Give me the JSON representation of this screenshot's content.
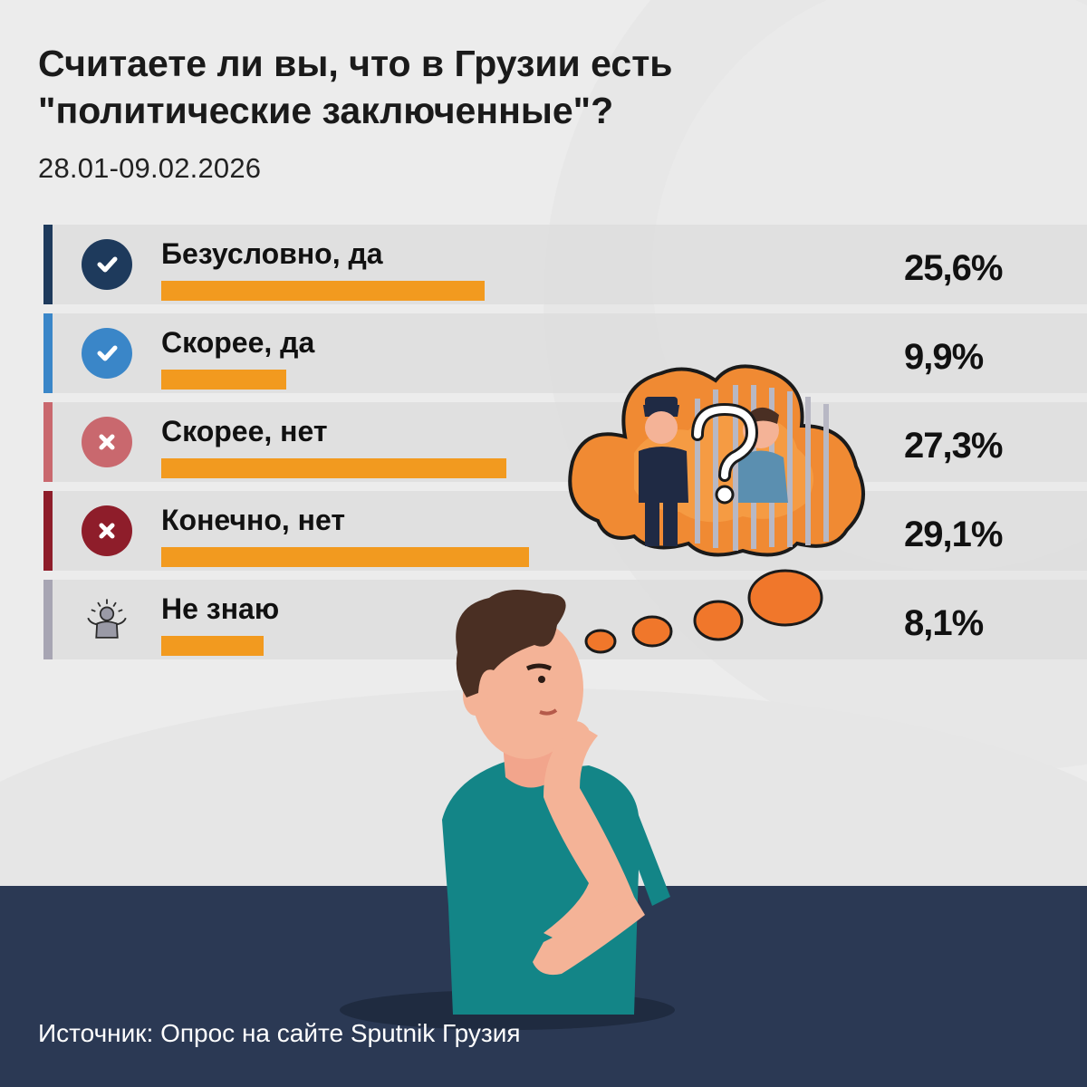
{
  "header": {
    "title_line1": "Считаете ли вы, что в Грузии есть",
    "title_line2": "\"политические заключенные\"?",
    "date_range": "28.01-09.02.2026"
  },
  "chart_data": {
    "type": "bar",
    "title": "Считаете ли вы, что в Грузии есть \"политические заключенные\"?",
    "subtitle": "28.01-09.02.2026",
    "orientation": "horizontal",
    "categories": [
      "Безусловно, да",
      "Скорее, да",
      "Скорее, нет",
      "Конечно, нет",
      "Не знаю"
    ],
    "values": [
      25.6,
      9.9,
      27.3,
      29.1,
      8.1
    ],
    "value_labels": [
      "25,6%",
      "9,9%",
      "27,3%",
      "29,1%",
      "8,1%"
    ],
    "unit": "%",
    "bar_color": "#f29a1f",
    "legend": "none",
    "grid": false
  },
  "rows": [
    {
      "label": "Безусловно, да",
      "value": "25,6%",
      "icon": "check-icon",
      "accent": "#1e3a5c"
    },
    {
      "label": "Скорее, да",
      "value": "9,9%",
      "icon": "check-icon",
      "accent": "#3a86c8"
    },
    {
      "label": "Скорее, нет",
      "value": "27,3%",
      "icon": "cross-icon",
      "accent": "#c9686e"
    },
    {
      "label": "Конечно, нет",
      "value": "29,1%",
      "icon": "cross-icon",
      "accent": "#8e1d2a"
    },
    {
      "label": "Не знаю",
      "value": "8,1%",
      "icon": "shrug-person-icon",
      "accent": "#a7a5b3"
    }
  ],
  "illustration": {
    "icons": [
      "thinking-man-icon",
      "thought-bubble-icon",
      "prison-cell-icon",
      "police-officer-icon",
      "question-mark-icon"
    ]
  },
  "footer": {
    "source": "Источник: Опрос на сайте Sputnik Грузия",
    "background": "#2b3954"
  }
}
